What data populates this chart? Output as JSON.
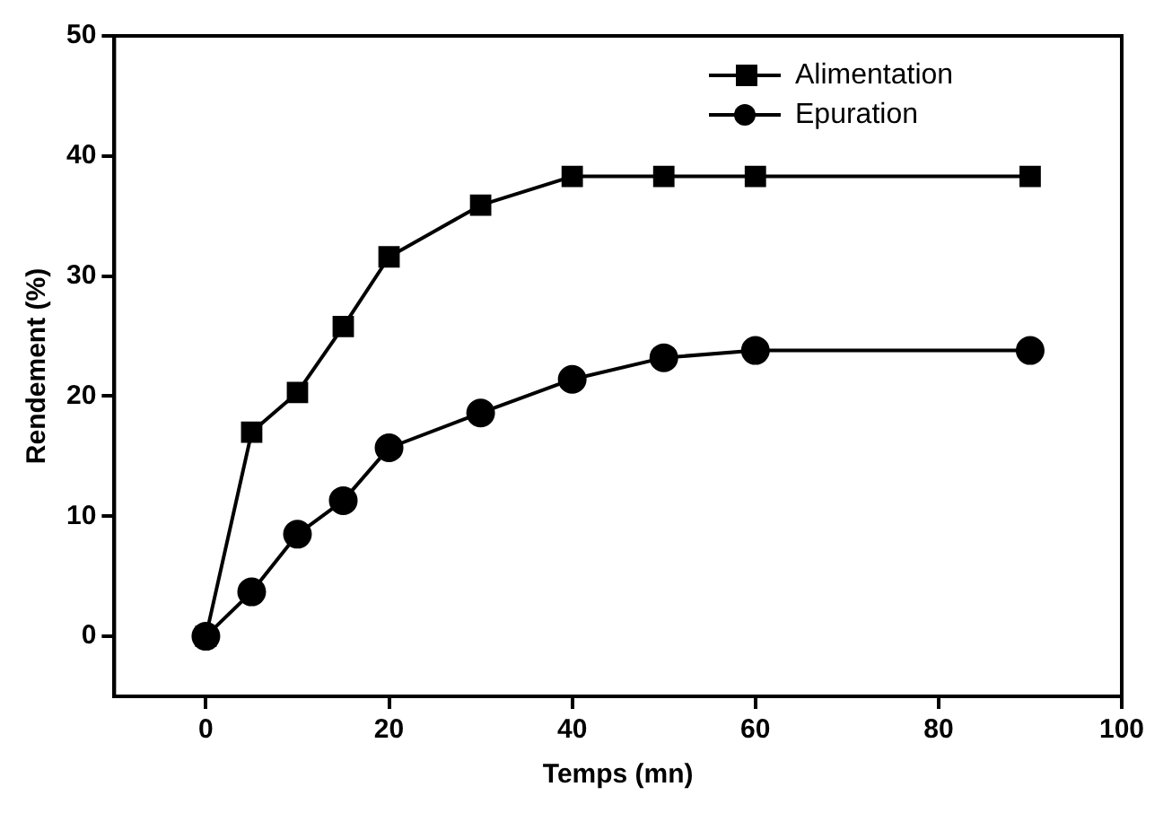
{
  "chart_data": {
    "type": "line",
    "xlabel": "Temps (mn)",
    "ylabel": "Rendement (%)",
    "x": [
      0,
      5,
      10,
      15,
      20,
      30,
      40,
      50,
      60,
      90
    ],
    "series": [
      {
        "name": "Alimentation",
        "color": "#000000",
        "marker": "square",
        "values": [
          0,
          17,
          20.3,
          25.8,
          31.6,
          35.9,
          38.3,
          38.3,
          38.3,
          38.3
        ]
      },
      {
        "name": "Epuration",
        "color": "#000000",
        "marker": "circle",
        "values": [
          0,
          3.7,
          8.5,
          11.3,
          15.7,
          18.6,
          21.4,
          23.2,
          23.8,
          23.8
        ]
      }
    ],
    "xlim": [
      -10,
      100
    ],
    "xticks": [
      0,
      20,
      40,
      60,
      80,
      100
    ],
    "ylim": [
      -5,
      50
    ],
    "yticks": [
      0,
      10,
      20,
      30,
      40,
      50
    ],
    "grid": false,
    "legend": "top right",
    "line_style": "solid"
  }
}
